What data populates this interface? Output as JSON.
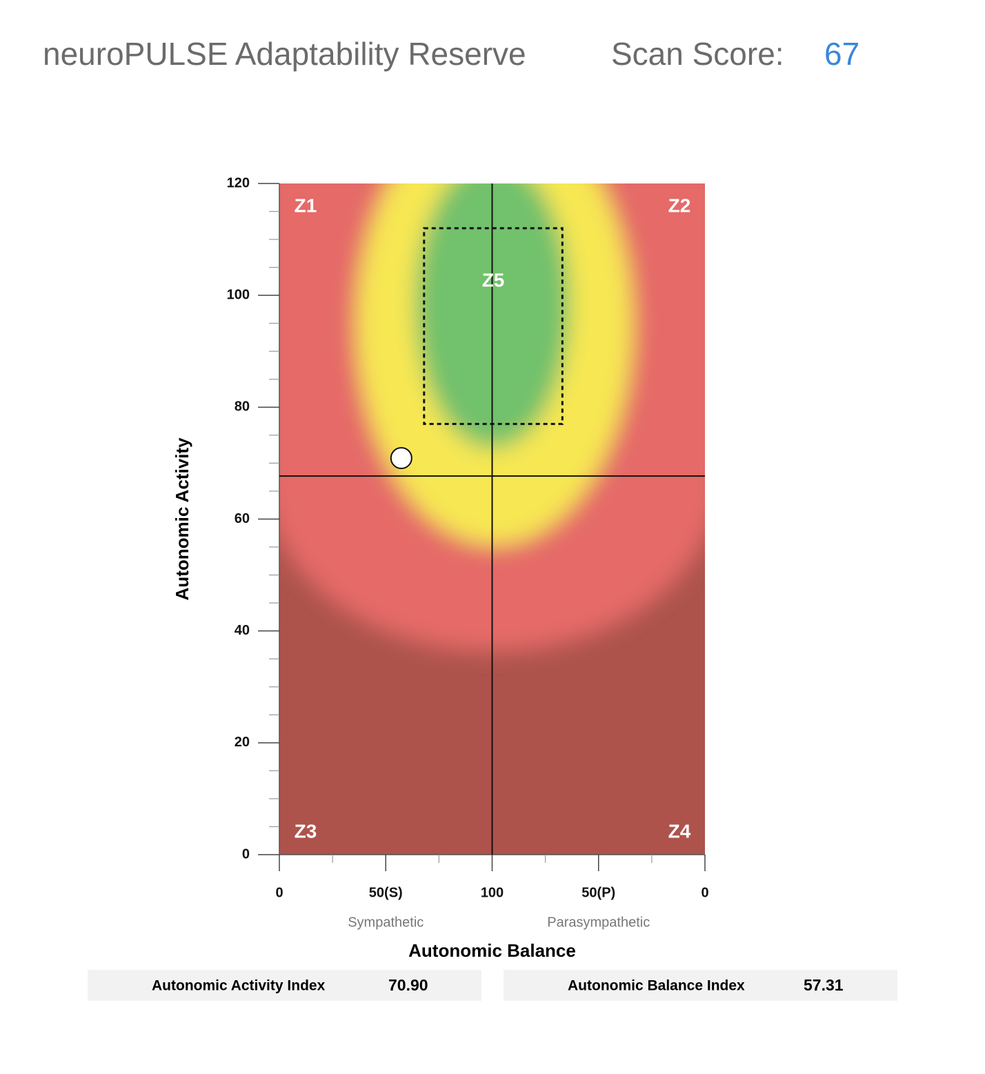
{
  "header": {
    "title": "neuroPULSE Adaptability Reserve",
    "score_label": "Scan Score:",
    "score": 67
  },
  "chart_data": {
    "type": "scatter",
    "xlabel": "Autonomic Balance",
    "ylabel": "Autonomic Activity",
    "x": [
      57.31
    ],
    "values": [
      70.9
    ],
    "color": "#ffffff",
    "xlim": [
      0,
      200
    ],
    "ylim": [
      0,
      120
    ],
    "xticks": [
      0,
      {
        "value": 50,
        "label": "50(S)"
      },
      100,
      {
        "value": 150,
        "label": "50(P)"
      },
      {
        "value": 200,
        "label": "0"
      }
    ],
    "xminorticks": [
      25,
      75,
      125,
      175
    ],
    "yticks": [
      0,
      20,
      40,
      60,
      80,
      100,
      120
    ],
    "yminorticks": [
      5,
      10,
      15,
      25,
      30,
      35,
      45,
      50,
      55,
      65,
      70,
      75,
      85,
      90,
      95,
      105,
      110,
      115
    ],
    "x_sublabels": [
      {
        "value": 50,
        "label": "Sympathetic"
      },
      {
        "value": 150,
        "label": "Parasympathetic"
      }
    ],
    "crosshair": {
      "x": 100,
      "y": 67.7
    },
    "zones": [
      "Z1",
      "Z2",
      "Z3",
      "Z4"
    ],
    "target_zone": {
      "label": "Z5",
      "xlim": [
        68,
        133
      ],
      "ylim": [
        77,
        112
      ]
    }
  },
  "summary": [
    {
      "label": "Autonomic Activity Index",
      "value": "70.90"
    },
    {
      "label": "Autonomic Balance Index",
      "value": "57.31"
    }
  ]
}
